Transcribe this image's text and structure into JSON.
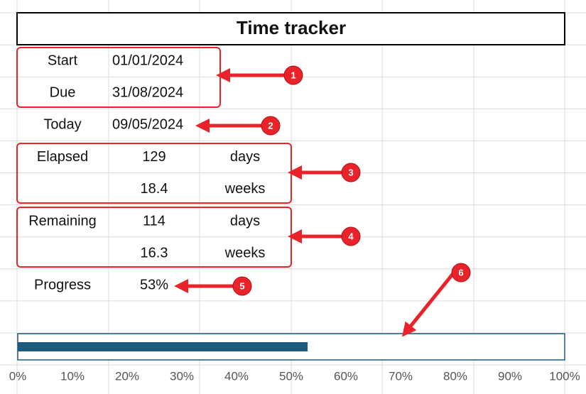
{
  "title": "Time tracker",
  "table": {
    "rows": [
      {
        "label": "Start",
        "value": "01/01/2024"
      },
      {
        "label": "Due",
        "value": "31/08/2024"
      },
      {
        "label": "Today",
        "value": "09/05/2024"
      },
      {
        "label": "Elapsed",
        "value": 129,
        "unit": "days"
      },
      {
        "value": 18.4,
        "unit": "weeks"
      },
      {
        "label": "Remaining",
        "value": 114,
        "unit": "days"
      },
      {
        "value": 16.3,
        "unit": "weeks"
      },
      {
        "label": "Progress",
        "value": "53%"
      }
    ]
  },
  "callouts": [
    1,
    2,
    3,
    4,
    5,
    6
  ],
  "chart_data": {
    "type": "bar",
    "orientation": "horizontal",
    "values": [
      53
    ],
    "color": "#1b5a7a",
    "xlim": [
      0,
      100
    ],
    "xticks": [
      {
        "value": 0,
        "label": "0%"
      },
      {
        "value": 10,
        "label": "10%"
      },
      {
        "value": 20,
        "label": "20%"
      },
      {
        "value": 30,
        "label": "30%"
      },
      {
        "value": 40,
        "label": "40%"
      },
      {
        "value": 50,
        "label": "50%"
      },
      {
        "value": 60,
        "label": "60%"
      },
      {
        "value": 70,
        "label": "70%"
      },
      {
        "value": 80,
        "label": "80%"
      },
      {
        "value": 90,
        "label": "90%"
      },
      {
        "value": 100,
        "label": "100%"
      }
    ]
  }
}
